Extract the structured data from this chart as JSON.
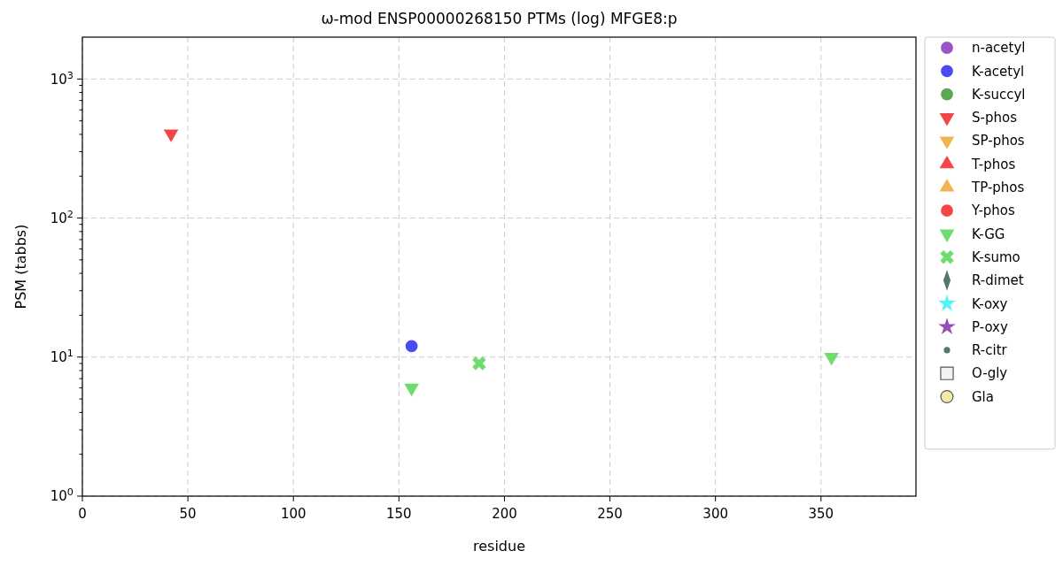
{
  "chart_data": {
    "type": "scatter",
    "title": "ω-mod ENSP00000268150 PTMs (log) MFGE8:p",
    "xlabel": "residue",
    "ylabel": "PSM (tabbs)",
    "log": "y",
    "grid": true,
    "legend": "right",
    "xlim": [
      0,
      395
    ],
    "ylim": [
      1,
      2000
    ],
    "xticks": [
      0,
      50,
      100,
      150,
      200,
      250,
      300,
      350
    ],
    "yticks": [
      {
        "value": 1,
        "label": "10$^{0}$"
      },
      {
        "value": 10,
        "label": "10$^{1}$"
      },
      {
        "value": 100,
        "label": "10$^{2}$"
      },
      {
        "value": 1000,
        "label": "10$^{3}$"
      }
    ],
    "series": [
      {
        "name": "n-acetyl",
        "color": "#9955c5",
        "marker": "circle"
      },
      {
        "name": "K-acetyl",
        "color": "#4b4bf5",
        "marker": "circle",
        "x": [
          156
        ],
        "values": [
          12
        ]
      },
      {
        "name": "K-succyl",
        "color": "#5ba854",
        "marker": "circle"
      },
      {
        "name": "S-phos",
        "color": "#f54646",
        "marker": "triangle-down",
        "x": [
          42
        ],
        "values": [
          404
        ]
      },
      {
        "name": "SP-phos",
        "color": "#f0b450",
        "marker": "triangle-down"
      },
      {
        "name": "T-phos",
        "color": "#f54646",
        "marker": "triangle"
      },
      {
        "name": "TP-phos",
        "color": "#f0b450",
        "marker": "triangle"
      },
      {
        "name": "Y-phos",
        "color": "#f54646",
        "marker": "circle"
      },
      {
        "name": "K-GG",
        "color": "#6edc6e",
        "marker": "triangle-down",
        "x": [
          156,
          355
        ],
        "values": [
          6,
          10
        ]
      },
      {
        "name": "K-sumo",
        "color": "#6edc6e",
        "marker": "cross",
        "x": [
          188
        ],
        "values": [
          9
        ]
      },
      {
        "name": "R-dimet",
        "color": "#4f7a68",
        "marker": "diamond"
      },
      {
        "name": "K-oxy",
        "color": "#55f5f5",
        "marker": "star"
      },
      {
        "name": "P-oxy",
        "color": "#9450b5",
        "marker": "star"
      },
      {
        "name": "R-citr",
        "color": "#4f7a68",
        "marker": "point"
      },
      {
        "name": "O-gly",
        "color": "#f2f2f2",
        "marker": "square"
      },
      {
        "name": "Gla",
        "color": "#f8e8a8",
        "marker": "circle"
      }
    ]
  }
}
